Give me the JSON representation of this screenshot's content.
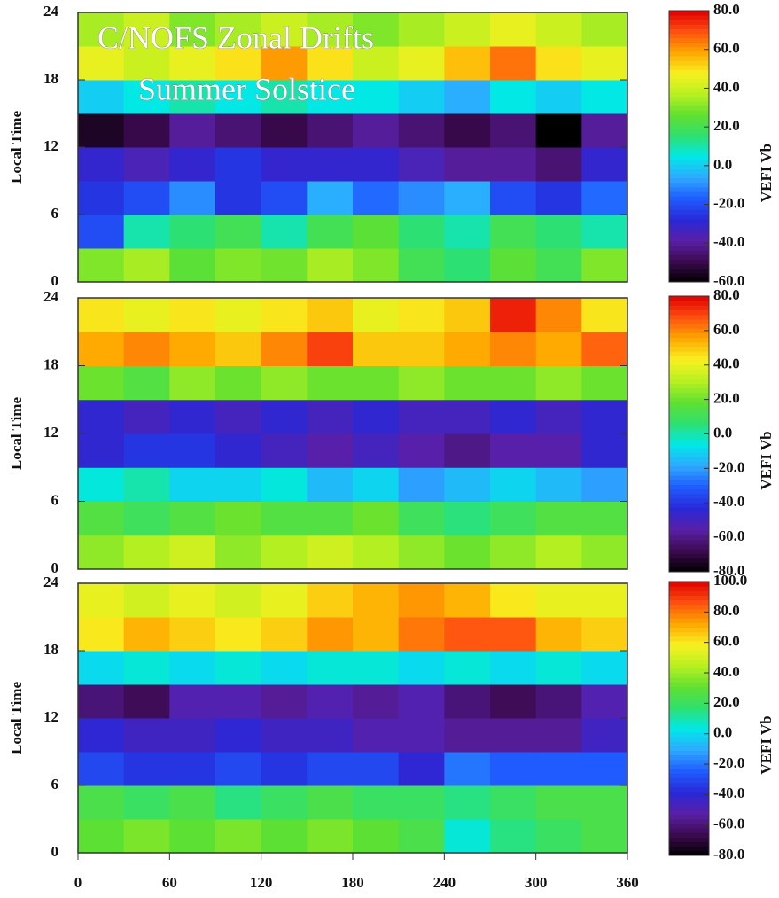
{
  "chart_data": [
    {
      "type": "heatmap",
      "title": "C/NOFS Zonal Drifts",
      "subtitle": "Summer Solstice",
      "ylabel": "Local Time",
      "xlim": [
        0,
        360
      ],
      "ylim": [
        0,
        24
      ],
      "yticks": [
        0,
        6,
        12,
        18,
        24
      ],
      "x": [
        15,
        45,
        75,
        105,
        135,
        165,
        195,
        225,
        255,
        285,
        315,
        345
      ],
      "y": [
        1.5,
        4.5,
        7.5,
        10.5,
        13.5,
        16.5,
        19.5,
        22.5
      ],
      "values": [
        [
          30,
          35,
          25,
          30,
          28,
          35,
          30,
          20,
          15,
          25,
          20,
          30
        ],
        [
          -20,
          10,
          15,
          20,
          10,
          20,
          25,
          15,
          10,
          20,
          15,
          10
        ],
        [
          -25,
          -20,
          -10,
          -25,
          -20,
          -5,
          -15,
          -10,
          -5,
          -20,
          -25,
          -15
        ],
        [
          -30,
          -35,
          -30,
          -25,
          -30,
          -30,
          -30,
          -35,
          -40,
          -40,
          -45,
          -30
        ],
        [
          -55,
          -50,
          -40,
          -45,
          -50,
          -45,
          -40,
          -45,
          -50,
          -45,
          -60,
          -40
        ],
        [
          0,
          5,
          10,
          5,
          10,
          5,
          5,
          0,
          -5,
          5,
          0,
          5
        ],
        [
          45,
          40,
          45,
          50,
          60,
          50,
          40,
          45,
          55,
          65,
          50,
          45
        ],
        [
          35,
          40,
          30,
          35,
          40,
          35,
          30,
          35,
          40,
          45,
          40,
          35
        ]
      ],
      "colorbar": {
        "label": "VEFI Vb",
        "zlim": [
          -60,
          80
        ],
        "ticks": [
          {
            "value": 80,
            "label": "80.0"
          },
          {
            "value": 60,
            "label": "60.0"
          },
          {
            "value": 40,
            "label": "40.0"
          },
          {
            "value": 20,
            "label": "20.0"
          },
          {
            "value": 0,
            "label": "0.0"
          },
          {
            "value": -20,
            "label": "-20.0"
          },
          {
            "value": -40,
            "label": "-40.0"
          },
          {
            "value": -60,
            "label": "-60.0"
          }
        ]
      },
      "colormap": [
        "#000000",
        "#3c0a50",
        "#5a20a8",
        "#2828d8",
        "#1f5cff",
        "#2ea8ff",
        "#00e8e8",
        "#2ee070",
        "#60e030",
        "#b8f020",
        "#f8f020",
        "#ffa800",
        "#ff5010",
        "#e00000"
      ]
    },
    {
      "type": "heatmap",
      "ylabel": "Local Time",
      "xlim": [
        0,
        360
      ],
      "ylim": [
        0,
        24
      ],
      "yticks": [
        0,
        6,
        12,
        18,
        24
      ],
      "x": [
        15,
        45,
        75,
        105,
        135,
        165,
        195,
        225,
        255,
        285,
        315,
        345
      ],
      "y": [
        1.5,
        4.5,
        7.5,
        10.5,
        13.5,
        16.5,
        19.5,
        22.5
      ],
      "values": [
        [
          25,
          30,
          35,
          25,
          30,
          35,
          30,
          25,
          20,
          25,
          30,
          25
        ],
        [
          15,
          10,
          15,
          20,
          15,
          15,
          20,
          10,
          5,
          10,
          15,
          15
        ],
        [
          -5,
          0,
          -10,
          -10,
          -5,
          -15,
          -10,
          -20,
          -15,
          -10,
          -15,
          -20
        ],
        [
          -45,
          -40,
          -40,
          -45,
          -50,
          -55,
          -50,
          -55,
          -60,
          -55,
          -55,
          -45
        ],
        [
          -45,
          -50,
          -45,
          -50,
          -45,
          -50,
          -45,
          -50,
          -50,
          -45,
          -50,
          -45
        ],
        [
          20,
          15,
          25,
          20,
          25,
          20,
          20,
          25,
          20,
          20,
          25,
          20
        ],
        [
          55,
          60,
          55,
          50,
          60,
          70,
          50,
          50,
          55,
          60,
          55,
          65
        ],
        [
          45,
          40,
          45,
          40,
          45,
          50,
          40,
          45,
          50,
          75,
          60,
          45
        ]
      ],
      "colorbar": {
        "label": "VEFI Vb",
        "zlim": [
          -80,
          80
        ],
        "ticks": [
          {
            "value": 80,
            "label": "80.0"
          },
          {
            "value": 60,
            "label": "60.0"
          },
          {
            "value": 40,
            "label": "40.0"
          },
          {
            "value": 20,
            "label": "20.0"
          },
          {
            "value": 0,
            "label": "0.0"
          },
          {
            "value": -20,
            "label": "-20.0"
          },
          {
            "value": -40,
            "label": "-40.0"
          },
          {
            "value": -60,
            "label": "-60.0"
          },
          {
            "value": -80,
            "label": "-80.0"
          }
        ]
      },
      "colormap": [
        "#000000",
        "#3c0a50",
        "#5a20a8",
        "#2828d8",
        "#1f5cff",
        "#2ea8ff",
        "#00e8e8",
        "#2ee070",
        "#60e030",
        "#b8f020",
        "#f8f020",
        "#ffa800",
        "#ff5010",
        "#e00000"
      ]
    },
    {
      "type": "heatmap",
      "ylabel": "Local Time",
      "xlim": [
        0,
        360
      ],
      "ylim": [
        0,
        24
      ],
      "yticks": [
        0,
        6,
        12,
        18,
        24
      ],
      "xticks": [
        0,
        60,
        120,
        180,
        240,
        300,
        360
      ],
      "x": [
        15,
        45,
        75,
        105,
        135,
        165,
        195,
        225,
        255,
        285,
        315,
        345
      ],
      "y": [
        1.5,
        4.5,
        7.5,
        10.5,
        13.5,
        16.5,
        19.5,
        22.5
      ],
      "values": [
        [
          30,
          35,
          30,
          35,
          30,
          35,
          30,
          25,
          5,
          15,
          20,
          25
        ],
        [
          25,
          20,
          25,
          15,
          20,
          25,
          20,
          20,
          15,
          20,
          25,
          25
        ],
        [
          -30,
          -35,
          -35,
          -30,
          -35,
          -30,
          -30,
          -40,
          -20,
          -25,
          -25,
          -25
        ],
        [
          -40,
          -45,
          -45,
          -40,
          -45,
          -45,
          -50,
          -50,
          -55,
          -55,
          -55,
          -45
        ],
        [
          -60,
          -65,
          -50,
          -50,
          -55,
          -50,
          -55,
          -50,
          -60,
          -65,
          -60,
          -50
        ],
        [
          0,
          5,
          0,
          5,
          0,
          5,
          5,
          0,
          5,
          0,
          5,
          0
        ],
        [
          60,
          70,
          65,
          60,
          65,
          75,
          70,
          80,
          85,
          85,
          70,
          65
        ],
        [
          55,
          50,
          55,
          50,
          55,
          65,
          70,
          75,
          70,
          60,
          55,
          55
        ]
      ],
      "colorbar": {
        "label": "VEFI Vb",
        "zlim": [
          -80,
          100
        ],
        "ticks": [
          {
            "value": 100,
            "label": "100.0"
          },
          {
            "value": 80,
            "label": "80.0"
          },
          {
            "value": 60,
            "label": "60.0"
          },
          {
            "value": 40,
            "label": "40.0"
          },
          {
            "value": 20,
            "label": "20.0"
          },
          {
            "value": 0,
            "label": "0.0"
          },
          {
            "value": -20,
            "label": "-20.0"
          },
          {
            "value": -40,
            "label": "-40.0"
          },
          {
            "value": -60,
            "label": "-60.0"
          },
          {
            "value": -80,
            "label": "-80.0"
          }
        ]
      },
      "colormap": [
        "#000000",
        "#3c0a50",
        "#5a20a8",
        "#2828d8",
        "#1f5cff",
        "#2ea8ff",
        "#00e8e8",
        "#2ee070",
        "#60e030",
        "#b8f020",
        "#f8f020",
        "#ffa800",
        "#ff5010",
        "#e00000"
      ]
    }
  ]
}
